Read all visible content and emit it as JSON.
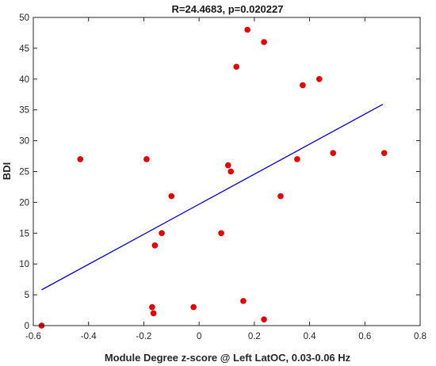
{
  "chart_data": {
    "type": "scatter",
    "title": "R=24.4683, p=0.020227",
    "xlabel": "Module Degree z-score @ Left LatOC, 0.03-0.06 Hz",
    "ylabel": "BDI",
    "xlim": [
      -0.6,
      0.8
    ],
    "ylim": [
      0,
      50
    ],
    "xticks": [
      -0.6,
      -0.4,
      -0.2,
      0,
      0.2,
      0.4,
      0.6,
      0.8
    ],
    "xtick_labels": [
      "-0.6",
      "-0.4",
      "-0.2",
      "0",
      "0.2",
      "0.4",
      "0.6",
      "0.8"
    ],
    "yticks": [
      0,
      5,
      10,
      15,
      20,
      25,
      30,
      35,
      40,
      45,
      50
    ],
    "ytick_labels": [
      "0",
      "5",
      "10",
      "15",
      "20",
      "25",
      "30",
      "35",
      "40",
      "45",
      "50"
    ],
    "grid": false,
    "colors": {
      "points": "#e60000",
      "fit_line": "#0000e6",
      "axes": "#262626"
    },
    "series": [
      {
        "type": "scatter",
        "x": [
          -0.57,
          -0.43,
          -0.19,
          -0.17,
          -0.165,
          -0.16,
          -0.135,
          -0.1,
          -0.02,
          0.08,
          0.105,
          0.115,
          0.135,
          0.16,
          0.175,
          0.235,
          0.235,
          0.295,
          0.355,
          0.375,
          0.435,
          0.485,
          0.67
        ],
        "y": [
          0,
          27,
          27,
          3,
          2,
          13,
          15,
          21,
          3,
          15,
          26,
          25,
          42,
          4,
          48,
          46,
          1,
          21,
          27,
          39,
          40,
          28,
          28
        ]
      },
      {
        "type": "line",
        "x": [
          -0.57,
          0.665
        ],
        "y": [
          5.8,
          35.9
        ]
      }
    ]
  }
}
